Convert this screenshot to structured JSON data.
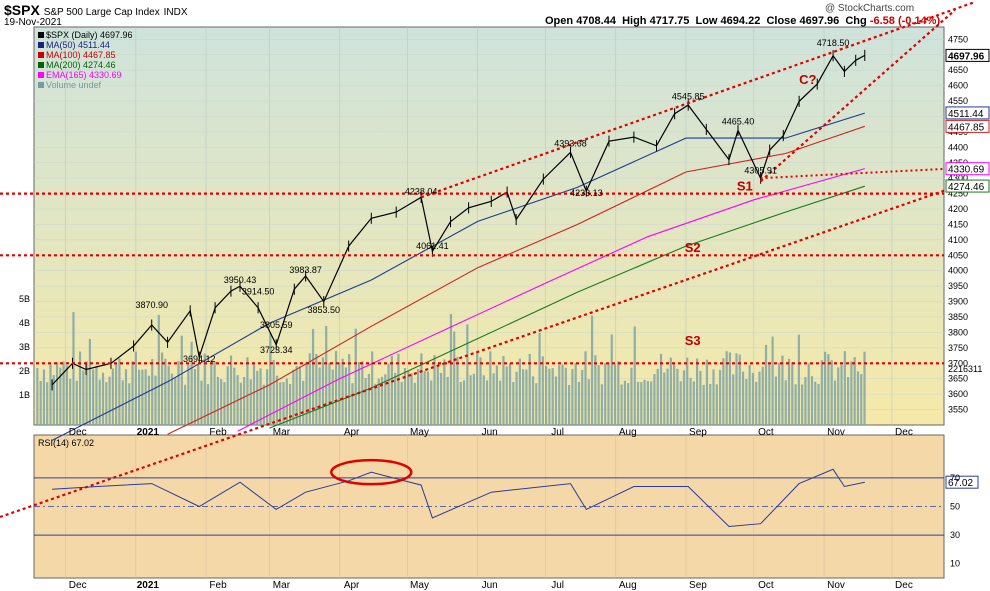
{
  "header": {
    "title": "$SPX",
    "title_desc": "S&P 500 Large Cap Index",
    "exchange": "INDX",
    "date": "19-Nov-2021",
    "open_label": "Open",
    "open": "4708.44",
    "high_label": "High",
    "high": "4717.75",
    "low_label": "Low",
    "low": "4694.22",
    "close_label": "Close",
    "close": "4697.96",
    "chg_label": "Chg",
    "chg": "-6.58 (-0.14%)",
    "brand": "@ StockCharts.com"
  },
  "legend": [
    {
      "label": "$SPX (Daily) 4697.96",
      "color": "#000000"
    },
    {
      "label": "MA(50) 4511.44",
      "color": "#1a237e"
    },
    {
      "label": "MA(100) 4467.85",
      "color": "#cc0000"
    },
    {
      "label": "MA(200) 4274.46",
      "color": "#006600"
    },
    {
      "label": "EMA(165) 4330.69",
      "color": "#ff00ff"
    },
    {
      "label": "Volume undef",
      "color": "#7a9a9a"
    }
  ],
  "colors": {
    "price_bg_top": "#cfe3dc",
    "price_bg_bottom": "#f5e9a8",
    "rsi_bg": "#f4d8a8",
    "trend_red": "#e00000",
    "ma50": "#1f3a93",
    "ma100": "#d42020",
    "ma200": "#1c7a1c",
    "ema165": "#ff00ff",
    "volume": "#7fa3a3"
  },
  "chart_data": [
    {
      "type": "line",
      "title": "S&P 500 Large Cap Index daily price",
      "y_axis_ticks": [
        3550,
        3600,
        3650,
        3700,
        3750,
        3800,
        3850,
        3900,
        3950,
        4000,
        4050,
        4100,
        4150,
        4200,
        4250,
        4300,
        4350,
        4400,
        4450,
        4500,
        4550,
        4600,
        4650,
        4700,
        4750
      ],
      "ylim": [
        3500,
        4790
      ],
      "x_ticks": [
        "Dec",
        "2021",
        "Feb",
        "Mar",
        "Apr",
        "May",
        "Jun",
        "Jul",
        "Aug",
        "Sep",
        "Oct",
        "Nov",
        "Dec"
      ],
      "volume_axis_ticks": [
        "1B",
        "2B",
        "3B",
        "4B",
        "5B"
      ],
      "volume_label": "2216311",
      "series": [
        {
          "name": "$SPX",
          "x": [
            "2020-11-25",
            "2020-12-04",
            "2020-12-10",
            "2020-12-21",
            "2020-12-31",
            "2021-01-08",
            "2021-01-15",
            "2021-01-25",
            "2021-01-29",
            "2021-02-05",
            "2021-02-12",
            "2021-02-16",
            "2021-02-24",
            "2021-03-04",
            "2021-03-12",
            "2021-03-17",
            "2021-03-25",
            "2021-04-05",
            "2021-04-15",
            "2021-04-26",
            "2021-05-07",
            "2021-05-12",
            "2021-05-20",
            "2021-05-28",
            "2021-06-07",
            "2021-06-14",
            "2021-06-18",
            "2021-06-30",
            "2021-07-12",
            "2021-07-19",
            "2021-07-29",
            "2021-08-09",
            "2021-08-19",
            "2021-08-27",
            "2021-09-02",
            "2021-09-10",
            "2021-09-20",
            "2021-09-24",
            "2021-10-04",
            "2021-10-08",
            "2021-10-14",
            "2021-10-21",
            "2021-10-29",
            "2021-11-05",
            "2021-11-10",
            "2021-11-15",
            "2021-11-19"
          ],
          "values": [
            3630,
            3700,
            3680,
            3700,
            3756,
            3824,
            3768,
            3870,
            3720,
            3880,
            3934,
            3950,
            3880,
            3760,
            3940,
            3983,
            3900,
            4080,
            4170,
            4190,
            4238,
            4063,
            4159,
            4204,
            4225,
            4255,
            4166,
            4297,
            4384,
            4258,
            4420,
            4433,
            4405,
            4509,
            4537,
            4458,
            4360,
            4455,
            4300,
            4391,
            4438,
            4549,
            4605,
            4697,
            4646,
            4682,
            4698
          ]
        },
        {
          "name": "MA(50)",
          "x": [
            "2020-11-25",
            "2021-01-15",
            "2021-03-01",
            "2021-04-15",
            "2021-06-01",
            "2021-07-15",
            "2021-09-01",
            "2021-10-15",
            "2021-11-19"
          ],
          "values": [
            3450,
            3640,
            3830,
            3970,
            4160,
            4270,
            4430,
            4430,
            4511
          ]
        },
        {
          "name": "MA(100)",
          "x": [
            "2021-01-15",
            "2021-03-01",
            "2021-04-15",
            "2021-06-01",
            "2021-07-15",
            "2021-09-01",
            "2021-10-15",
            "2021-11-19"
          ],
          "values": [
            3470,
            3630,
            3820,
            4010,
            4150,
            4320,
            4380,
            4468
          ]
        },
        {
          "name": "EMA(165)",
          "x": [
            "2021-02-15",
            "2021-04-01",
            "2021-05-15",
            "2021-07-01",
            "2021-08-15",
            "2021-10-01",
            "2021-11-19"
          ],
          "values": [
            3480,
            3650,
            3800,
            3960,
            4110,
            4230,
            4331
          ]
        },
        {
          "name": "MA(200)",
          "x": [
            "2021-03-01",
            "2021-04-15",
            "2021-06-01",
            "2021-07-15",
            "2021-09-01",
            "2021-10-15",
            "2021-11-19"
          ],
          "values": [
            3490,
            3620,
            3780,
            3930,
            4080,
            4190,
            4274
          ]
        }
      ],
      "value_labels": [
        {
          "text": "3870.90",
          "x": "2021-01-08",
          "y": 3870
        },
        {
          "text": "3694.12",
          "x": "2021-01-29",
          "y": 3694
        },
        {
          "text": "3950.43",
          "x": "2021-02-16",
          "y": 3950
        },
        {
          "text": "3914.50",
          "x": "2021-02-24",
          "y": 3914
        },
        {
          "text": "3805.59",
          "x": "2021-03-04",
          "y": 3805
        },
        {
          "text": "3723.34",
          "x": "2021-03-04",
          "y": 3723
        },
        {
          "text": "3983.87",
          "x": "2021-03-17",
          "y": 3983
        },
        {
          "text": "3853.50",
          "x": "2021-03-25",
          "y": 3853
        },
        {
          "text": "4238.04",
          "x": "2021-05-07",
          "y": 4238
        },
        {
          "text": "4061.41",
          "x": "2021-05-12",
          "y": 4061
        },
        {
          "text": "4233.13",
          "x": "2021-07-19",
          "y": 4233
        },
        {
          "text": "4393.68",
          "x": "2021-07-12",
          "y": 4393
        },
        {
          "text": "4545.85",
          "x": "2021-09-02",
          "y": 4545
        },
        {
          "text": "4465.40",
          "x": "2021-09-24",
          "y": 4465
        },
        {
          "text": "4305.91",
          "x": "2021-10-04",
          "y": 4305
        },
        {
          "text": "4718.50",
          "x": "2021-11-05",
          "y": 4718
        }
      ],
      "right_labels": [
        {
          "text": "4697.96",
          "y": 4697.96
        },
        {
          "text": "4511.44",
          "y": 4511.44
        },
        {
          "text": "4467.85",
          "y": 4467.85
        },
        {
          "text": "4330.69",
          "y": 4330.69
        },
        {
          "text": "4274.46",
          "y": 4274.46
        }
      ],
      "support_lines": [
        {
          "name": "S1",
          "y": 4250
        },
        {
          "name": "S2",
          "y": 4050
        },
        {
          "name": "S3",
          "y": 3700
        }
      ],
      "wave_label": "C?",
      "wave_label_x": "2021-10-21",
      "wave_label_y": 4605
    },
    {
      "type": "line",
      "title": "RSI(14) 67.02",
      "ylim": [
        0,
        100
      ],
      "y_axis_ticks": [
        10,
        30,
        50,
        70
      ],
      "last_value": "67.02",
      "reference_levels": [
        30,
        70
      ],
      "series": [
        {
          "name": "RSI(14)",
          "x": [
            "2020-11-25",
            "2020-12-15",
            "2021-01-08",
            "2021-01-29",
            "2021-02-16",
            "2021-03-04",
            "2021-03-17",
            "2021-04-05",
            "2021-04-15",
            "2021-05-07",
            "2021-05-12",
            "2021-06-07",
            "2021-07-12",
            "2021-07-19",
            "2021-08-09",
            "2021-09-02",
            "2021-09-20",
            "2021-10-04",
            "2021-10-21",
            "2021-11-05",
            "2021-11-10",
            "2021-11-19"
          ],
          "values": [
            62,
            64,
            66,
            50,
            67,
            48,
            60,
            68,
            74,
            65,
            42,
            60,
            66,
            48,
            64,
            64,
            36,
            38,
            66,
            76,
            64,
            67
          ]
        }
      ]
    }
  ]
}
